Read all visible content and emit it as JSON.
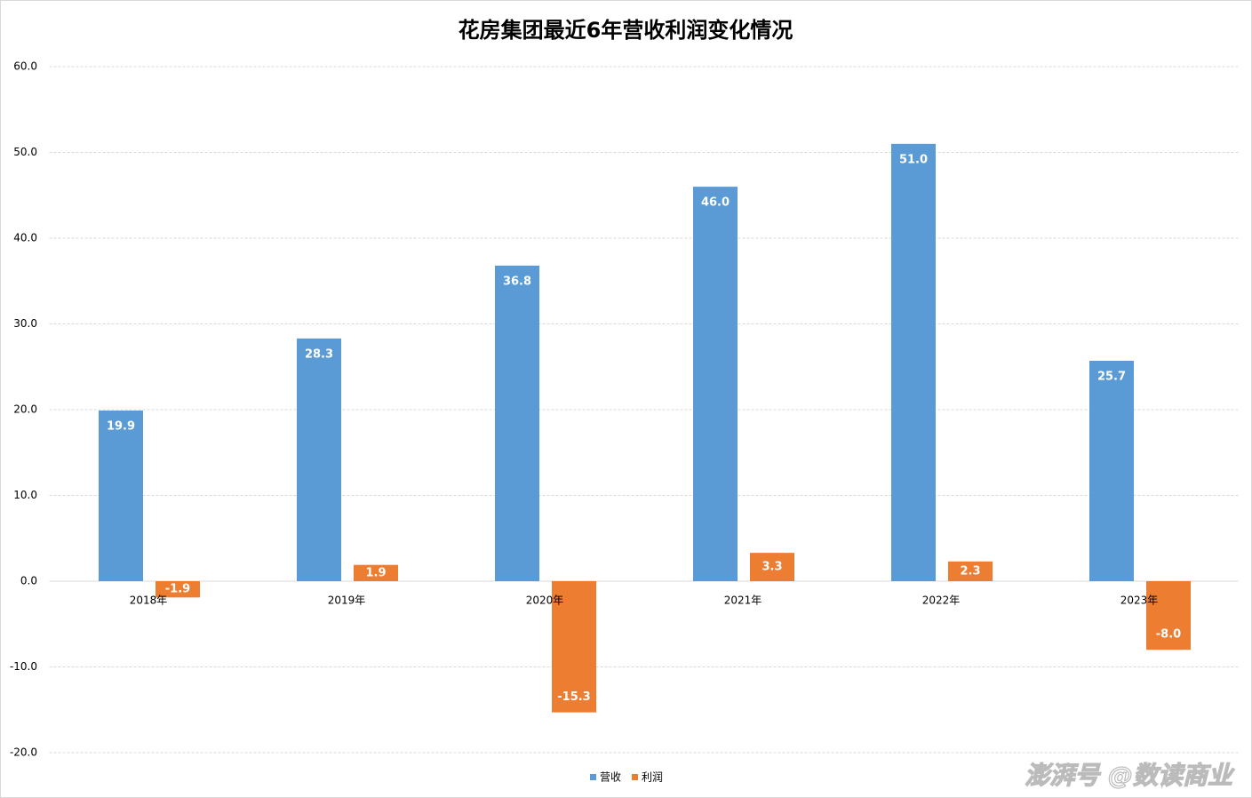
{
  "chart_data": {
    "type": "bar",
    "title": "花房集团最近6年营收利润变化情况",
    "categories": [
      "2018年",
      "2019年",
      "2020年",
      "2021年",
      "2022年",
      "2023年"
    ],
    "series": [
      {
        "name": "营收",
        "color": "#5b9bd5",
        "values": [
          19.9,
          28.3,
          36.8,
          46.0,
          51.0,
          25.7
        ],
        "value_labels": [
          "19.9",
          "28.3",
          "36.8",
          "46.0",
          "51.0",
          "25.7"
        ]
      },
      {
        "name": "利润",
        "color": "#ed7d31",
        "values": [
          -1.9,
          1.9,
          -15.3,
          3.3,
          2.3,
          -8.0
        ],
        "value_labels": [
          "-1.9",
          "1.9",
          "-15.3",
          "3.3",
          "2.3",
          "-8.0"
        ]
      }
    ],
    "ylim": [
      -20,
      60
    ],
    "yticks": [
      {
        "value": -20,
        "label": "-20.0"
      },
      {
        "value": -10,
        "label": "-10.0"
      },
      {
        "value": 0,
        "label": "0.0"
      },
      {
        "value": 10,
        "label": "10.0"
      },
      {
        "value": 20,
        "label": "20.0"
      },
      {
        "value": 30,
        "label": "30.0"
      },
      {
        "value": 40,
        "label": "40.0"
      },
      {
        "value": 50,
        "label": "50.0"
      },
      {
        "value": 60,
        "label": "60.0"
      }
    ],
    "grid": true,
    "legend": "bottom",
    "watermark": "澎湃号 @数读商业"
  }
}
